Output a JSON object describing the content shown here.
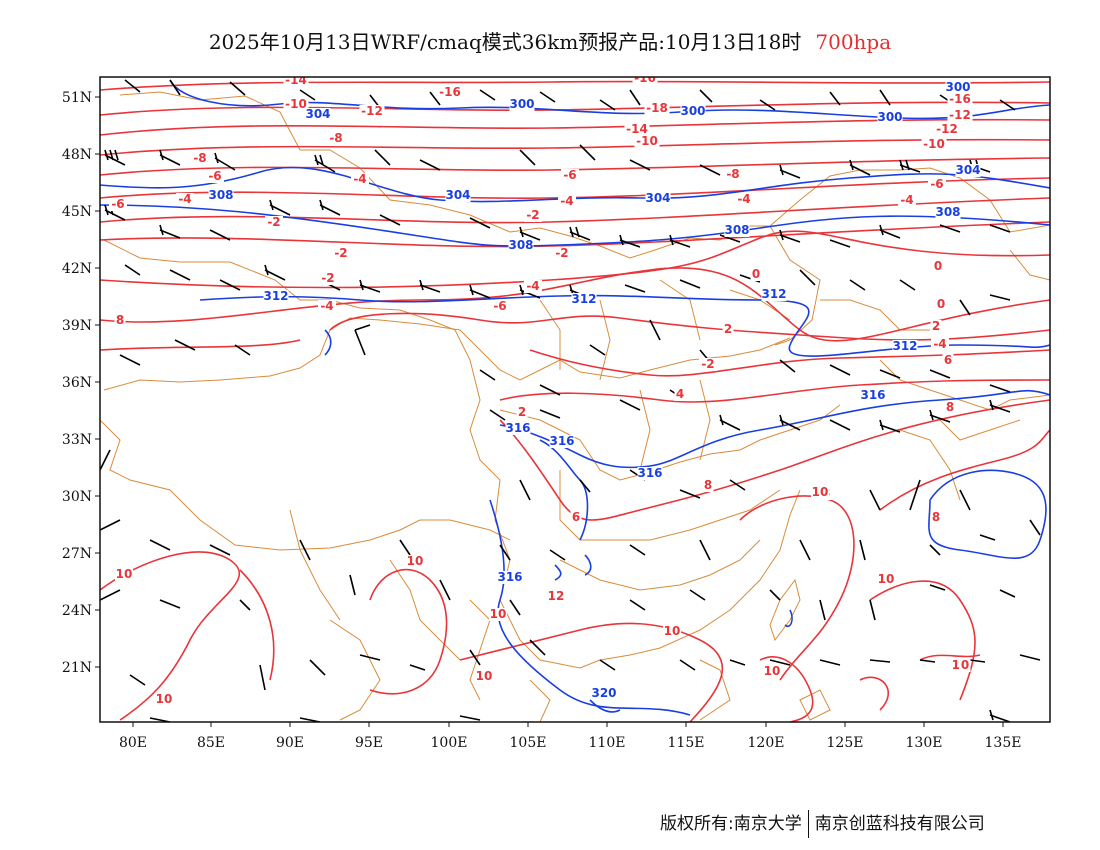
{
  "title": {
    "main": "2025年10月13日WRF/cmaq模式36km预报产品:10月13日18时",
    "level": "700hpa"
  },
  "colors": {
    "temperature": "#e8353a",
    "height": "#1a3fe0",
    "boundary": "#d98c3c",
    "wind": "#000000",
    "level_text": "#e03030"
  },
  "axes": {
    "lat_labels": [
      "51N",
      "48N",
      "45N",
      "42N",
      "39N",
      "36N",
      "33N",
      "30N",
      "27N",
      "24N",
      "21N"
    ],
    "lon_labels": [
      "80E",
      "85E",
      "90E",
      "95E",
      "100E",
      "105E",
      "110E",
      "115E",
      "120E",
      "125E",
      "130E",
      "135E"
    ]
  },
  "temperature_labels": [
    "-14",
    "-16",
    "-16",
    "-10",
    "-18",
    "-16",
    "-12",
    "-14",
    "-12",
    "-8",
    "-8",
    "-12",
    "-10",
    "-10",
    "-6",
    "-6",
    "-8",
    "-6",
    "-6",
    "-4",
    "-4",
    "-4",
    "-2",
    "-4",
    "-2",
    "-2",
    "-2",
    "-4",
    "0",
    "-2",
    "0",
    "2",
    "2",
    "0",
    "-4",
    "-4",
    "-6",
    "-4",
    "-2",
    "8",
    "2",
    "4",
    "6",
    "8",
    "6",
    "8",
    "8",
    "8",
    "10",
    "10",
    "12",
    "10",
    "10",
    "10",
    "10",
    "10",
    "10",
    "10",
    "10",
    "0",
    "10",
    "8"
  ],
  "height_labels": [
    "300",
    "300",
    "300",
    "300",
    "304",
    "304",
    "308",
    "304",
    "304",
    "308",
    "308",
    "308",
    "312",
    "312",
    "312",
    "312",
    "316",
    "316",
    "316",
    "316",
    "316",
    "320"
  ],
  "footer": {
    "left": "版权所有:南京大学",
    "right": "南京创蓝科技有限公司"
  }
}
